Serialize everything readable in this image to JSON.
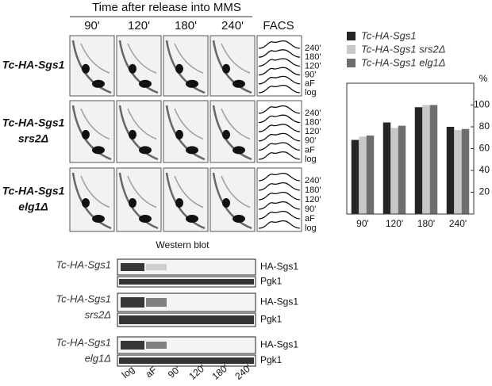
{
  "figure": {
    "header": "Time after release into MMS",
    "columns": [
      "90'",
      "120'",
      "180'",
      "240'"
    ],
    "facs_label": "FACS",
    "facs_timepoints": [
      "240'",
      "180'",
      "120'",
      "90'",
      "aF",
      "log"
    ],
    "strains": [
      [
        "Tc-HA-Sgs1"
      ],
      [
        "Tc-HA-Sgs1",
        "srs2Δ"
      ],
      [
        "Tc-HA-Sgs1",
        "elg1Δ"
      ]
    ]
  },
  "western": {
    "title": "Western blot",
    "strains": [
      [
        "Tc-HA-Sgs1"
      ],
      [
        "Tc-HA-Sgs1",
        "srs2Δ"
      ],
      [
        "Tc-HA-Sgs1",
        "elg1Δ"
      ]
    ],
    "bands": [
      "HA-Sgs1",
      "Pgk1"
    ],
    "lanes": [
      "log",
      "aF",
      "90'",
      "120'",
      "180'",
      "240'"
    ]
  },
  "chart_data": {
    "type": "bar",
    "y_label": "%",
    "categories": [
      "90'",
      "120'",
      "180'",
      "240'"
    ],
    "series": [
      {
        "name": "Tc-HA-Sgs1",
        "color": "#262626",
        "values": [
          68,
          84,
          98,
          80
        ]
      },
      {
        "name": "Tc-HA-Sgs1 srs2Δ",
        "color": "#c8c8c8",
        "values": [
          71,
          79,
          100,
          77
        ]
      },
      {
        "name": "Tc-HA-Sgs1 elg1Δ",
        "color": "#6e6e6e",
        "values": [
          72,
          81,
          100,
          78
        ]
      }
    ],
    "ylim": [
      0,
      120
    ],
    "yticks": [
      20,
      40,
      60,
      80,
      100
    ],
    "grid": false
  }
}
